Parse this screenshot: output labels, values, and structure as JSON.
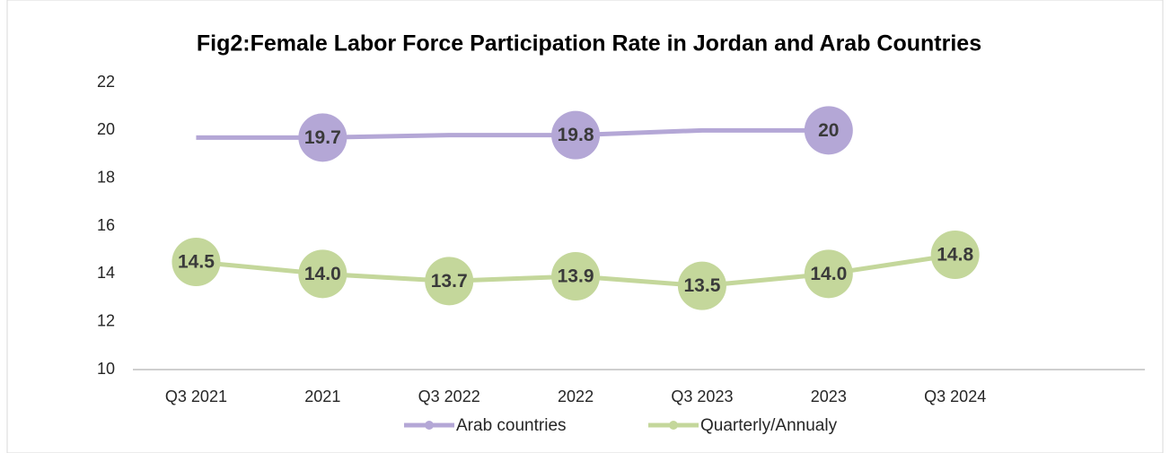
{
  "chart_data": {
    "type": "line",
    "title": "Fig2:Female Labor Force Participation Rate in Jordan and Arab Countries",
    "categories": [
      "Q3 2021",
      "2021",
      "Q3 2022",
      "2022",
      "Q3 2023",
      "2023",
      "Q3 2024",
      null
    ],
    "series": [
      {
        "name": "Arab countries",
        "color": "#b4a7d6",
        "values": [
          19.7,
          19.7,
          19.8,
          19.8,
          20,
          20,
          null,
          null
        ],
        "value_labels": [
          null,
          "19.7",
          null,
          "19.8",
          null,
          "20",
          null,
          null
        ]
      },
      {
        "name": "Quarterly/Annualy",
        "color": "#c4d79b",
        "values": [
          14.5,
          14.0,
          13.7,
          13.9,
          13.5,
          14.0,
          14.8,
          null
        ],
        "value_labels": [
          "14.5",
          "14.0",
          "13.7",
          "13.9",
          "13.5",
          "14.0",
          "14.8",
          null
        ]
      }
    ],
    "ylim": [
      10,
      22
    ],
    "yticks": [
      10,
      12,
      14,
      16,
      18,
      20,
      22
    ],
    "grid": false,
    "legend": "bottom"
  }
}
